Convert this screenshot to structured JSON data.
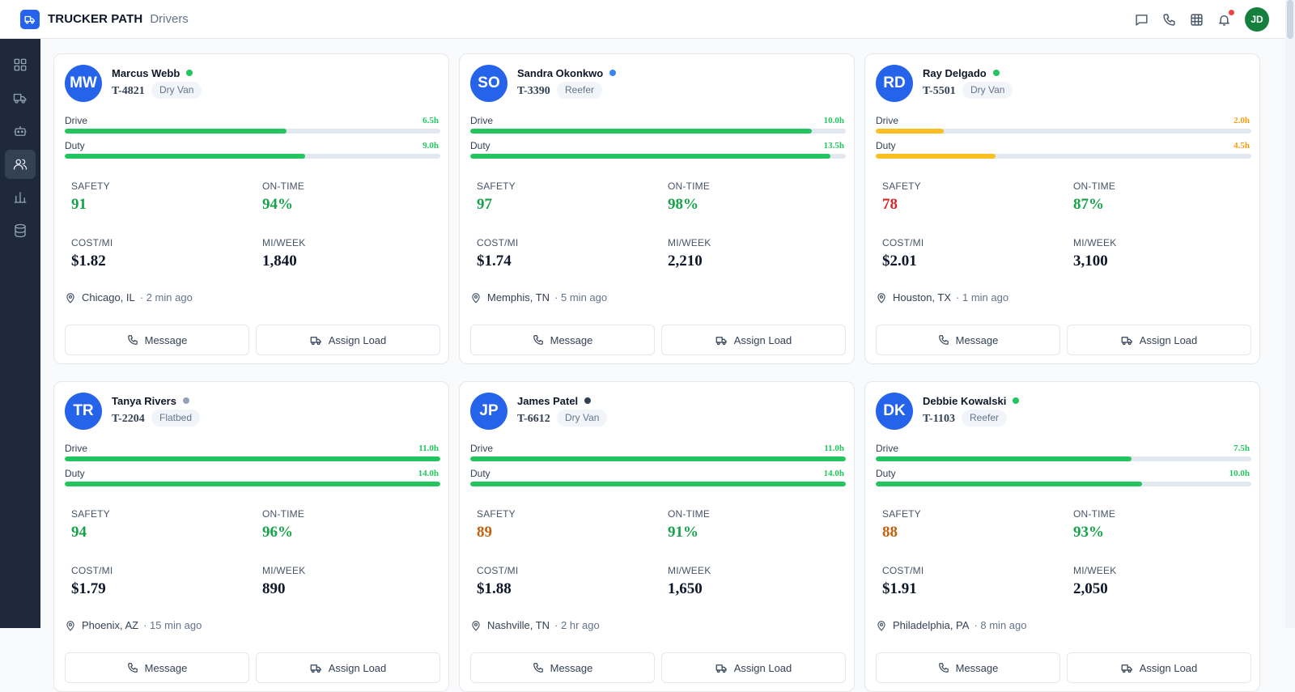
{
  "header": {
    "brand": "TRUCKER PATH",
    "section": "Drivers",
    "user_initials": "JD"
  },
  "colors": {
    "green": "#22c55e",
    "amber": "#fbbf24",
    "blue": "#3b82f6",
    "gray": "#94a3b8",
    "dark": "#334155",
    "brand": "#2563eb",
    "score_green": "#16a34a",
    "score_red": "#dc2626",
    "score_orange": "#c2610c"
  },
  "labels": {
    "drive": "Drive",
    "duty": "Duty",
    "safety": "SAFETY",
    "on_time": "ON-TIME",
    "cost_mi": "COST/MI",
    "mi_week": "MI/WEEK",
    "message": "Message",
    "assign_load": "Assign Load"
  },
  "drivers": [
    {
      "initials": "MW",
      "name": "Marcus Webb",
      "status": "green",
      "truck": "T-4821",
      "trailer": "Dry Van",
      "drive": "6.5h",
      "drive_pct": 0.59,
      "duty": "9.0h",
      "duty_pct": 0.64,
      "bar_color": "green",
      "safety": "91",
      "safety_color": "score_green",
      "on_time": "94%",
      "cost": "$1.82",
      "miles": "1,840",
      "location": "Chicago, IL",
      "updated": "· 2 min ago"
    },
    {
      "initials": "SO",
      "name": "Sandra Okonkwo",
      "status": "blue",
      "truck": "T-3390",
      "trailer": "Reefer",
      "drive": "10.0h",
      "drive_pct": 0.91,
      "duty": "13.5h",
      "duty_pct": 0.96,
      "bar_color": "green",
      "safety": "97",
      "safety_color": "score_green",
      "on_time": "98%",
      "cost": "$1.74",
      "miles": "2,210",
      "location": "Memphis, TN",
      "updated": "· 5 min ago"
    },
    {
      "initials": "RD",
      "name": "Ray Delgado",
      "status": "green",
      "truck": "T-5501",
      "trailer": "Dry Van",
      "drive": "2.0h",
      "drive_pct": 0.18,
      "duty": "4.5h",
      "duty_pct": 0.32,
      "bar_color": "amber",
      "safety": "78",
      "safety_color": "score_red",
      "on_time": "87%",
      "cost": "$2.01",
      "miles": "3,100",
      "location": "Houston, TX",
      "updated": "· 1 min ago"
    },
    {
      "initials": "TR",
      "name": "Tanya Rivers",
      "status": "gray",
      "truck": "T-2204",
      "trailer": "Flatbed",
      "drive": "11.0h",
      "drive_pct": 1.0,
      "duty": "14.0h",
      "duty_pct": 1.0,
      "bar_color": "green",
      "safety": "94",
      "safety_color": "score_green",
      "on_time": "96%",
      "cost": "$1.79",
      "miles": "890",
      "location": "Phoenix, AZ",
      "updated": "· 15 min ago"
    },
    {
      "initials": "JP",
      "name": "James Patel",
      "status": "dark",
      "truck": "T-6612",
      "trailer": "Dry Van",
      "drive": "11.0h",
      "drive_pct": 1.0,
      "duty": "14.0h",
      "duty_pct": 1.0,
      "bar_color": "green",
      "safety": "89",
      "safety_color": "score_orange",
      "on_time": "91%",
      "cost": "$1.88",
      "miles": "1,650",
      "location": "Nashville, TN",
      "updated": "· 2 hr ago"
    },
    {
      "initials": "DK",
      "name": "Debbie Kowalski",
      "status": "green",
      "truck": "T-1103",
      "trailer": "Reefer",
      "drive": "7.5h",
      "drive_pct": 0.68,
      "duty": "10.0h",
      "duty_pct": 0.71,
      "bar_color": "green",
      "safety": "88",
      "safety_color": "score_orange",
      "on_time": "93%",
      "cost": "$1.91",
      "miles": "2,050",
      "location": "Philadelphia, PA",
      "updated": "· 8 min ago"
    }
  ]
}
